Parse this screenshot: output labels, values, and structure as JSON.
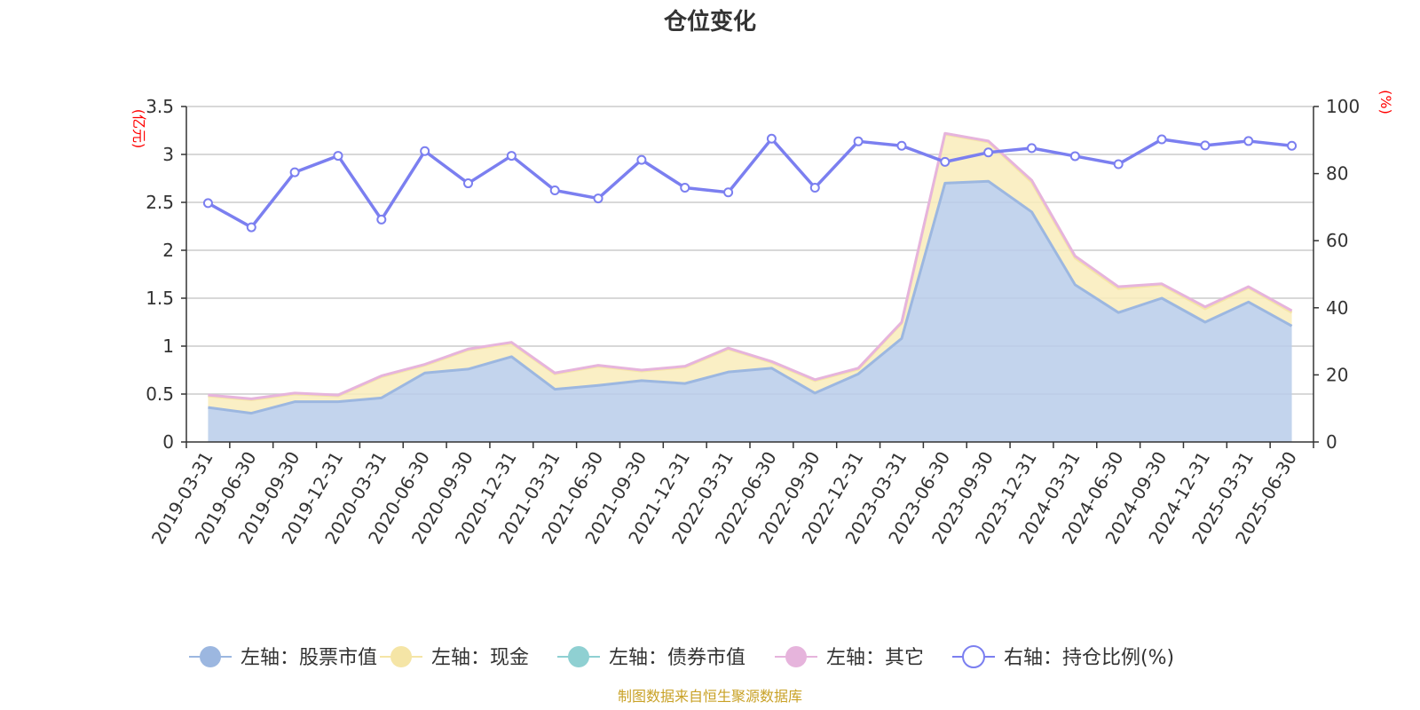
{
  "chart_data": {
    "type": "area",
    "title": "仓位变化",
    "left_unit": "(亿元)",
    "right_unit": "(%)",
    "categories": [
      "2019-03-31",
      "2019-06-30",
      "2019-09-30",
      "2019-12-31",
      "2020-03-31",
      "2020-06-30",
      "2020-09-30",
      "2020-12-31",
      "2021-03-31",
      "2021-06-30",
      "2021-09-30",
      "2021-12-31",
      "2022-03-31",
      "2022-06-30",
      "2022-09-30",
      "2022-12-31",
      "2023-03-31",
      "2023-06-30",
      "2023-09-30",
      "2023-12-31",
      "2024-03-31",
      "2024-06-30",
      "2024-09-30",
      "2024-12-31",
      "2025-03-31",
      "2025-06-30"
    ],
    "left_axis": {
      "min": 0,
      "max": 3.5,
      "ticks": [
        "0",
        "0.5",
        "1",
        "1.5",
        "2",
        "2.5",
        "3",
        "3.5"
      ]
    },
    "right_axis": {
      "min": 0,
      "max": 100,
      "ticks": [
        "0",
        "20",
        "40",
        "60",
        "80",
        "100"
      ]
    },
    "series": [
      {
        "name": "左轴：股票市值",
        "axis": "left",
        "stack": true,
        "color": "#9cb7e0",
        "fill": "#b8cdea",
        "values": [
          0.36,
          0.3,
          0.42,
          0.42,
          0.46,
          0.72,
          0.76,
          0.89,
          0.55,
          0.59,
          0.64,
          0.61,
          0.73,
          0.77,
          0.51,
          0.71,
          1.08,
          2.7,
          2.72,
          2.4,
          1.64,
          1.35,
          1.5,
          1.25,
          1.46,
          1.21
        ]
      },
      {
        "name": "左轴：现金",
        "axis": "left",
        "stack": true,
        "color": "#f5e5a6",
        "fill": "#f9ecbb",
        "values": [
          0.12,
          0.14,
          0.08,
          0.06,
          0.22,
          0.08,
          0.2,
          0.14,
          0.16,
          0.2,
          0.1,
          0.17,
          0.24,
          0.06,
          0.13,
          0.05,
          0.16,
          0.51,
          0.41,
          0.31,
          0.28,
          0.25,
          0.14,
          0.14,
          0.15,
          0.14
        ]
      },
      {
        "name": "左轴：债券市值",
        "axis": "left",
        "stack": true,
        "color": "#8fd0d2",
        "fill": "#8fd0d2",
        "values": [
          0,
          0,
          0,
          0,
          0,
          0,
          0,
          0,
          0,
          0,
          0,
          0,
          0,
          0,
          0,
          0,
          0,
          0,
          0,
          0,
          0,
          0,
          0,
          0,
          0,
          0
        ]
      },
      {
        "name": "左轴：其它",
        "axis": "left",
        "stack": true,
        "color": "#e6b4dc",
        "fill": "#e6b4dc",
        "values": [
          0.01,
          0.01,
          0.01,
          0.01,
          0.01,
          0.01,
          0.01,
          0.01,
          0.01,
          0.01,
          0.01,
          0.01,
          0.01,
          0.01,
          0.01,
          0.01,
          0.01,
          0.01,
          0.01,
          0.02,
          0.02,
          0.02,
          0.01,
          0.02,
          0.01,
          0.02
        ]
      },
      {
        "name": "右轴：持仓比例(%)",
        "axis": "right",
        "color": "#7b7ff0",
        "values": [
          71.2,
          64.0,
          80.4,
          85.3,
          66.3,
          86.7,
          77.1,
          85.3,
          75.0,
          72.6,
          84.1,
          75.8,
          74.4,
          90.4,
          75.8,
          89.6,
          88.3,
          83.5,
          86.3,
          87.6,
          85.2,
          82.8,
          90.2,
          88.4,
          89.7,
          88.3
        ]
      }
    ],
    "source": "制图数据来自恒生聚源数据库"
  }
}
